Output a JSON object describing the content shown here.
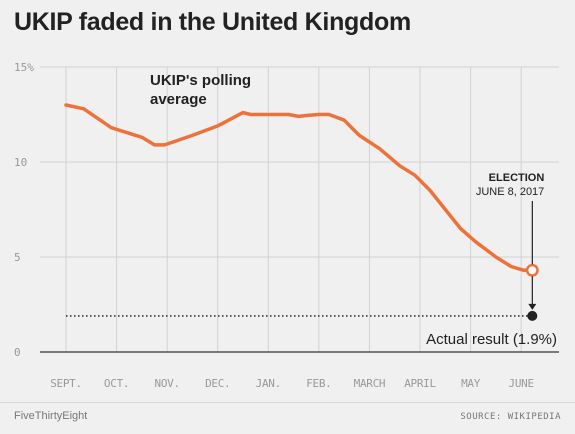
{
  "title": "UKIP faded in the United Kingdom",
  "footer": {
    "brand": "FiveThirtyEight",
    "source": "SOURCE: WIKIPEDIA"
  },
  "colors": {
    "line": "#ed713a",
    "marker": "#222222",
    "grid": "#d2d2d2",
    "text": "#222222",
    "axis_text": "#999999"
  },
  "chart_data": {
    "type": "line",
    "title": "UKIP faded in the United Kingdom",
    "xlabel": "",
    "ylabel": "",
    "ylim": [
      0,
      15
    ],
    "xlim": [
      0,
      9.55
    ],
    "ytick_labels": [
      "15%",
      "10",
      "5",
      "0"
    ],
    "yticks": [
      15,
      10,
      5,
      0
    ],
    "xtick_labels": [
      "SEPT.",
      "OCT.",
      "NOV.",
      "DEC.",
      "JAN.",
      "FEB.",
      "MARCH",
      "APRIL",
      "MAY",
      "JUNE"
    ],
    "xticks": [
      0,
      1,
      2,
      3,
      4,
      5,
      6,
      7,
      8,
      9
    ],
    "series": [
      {
        "name": "UKIP's polling average",
        "x": [
          0,
          0.35,
          0.9,
          1.5,
          1.75,
          1.95,
          2.5,
          3.0,
          3.5,
          3.65,
          4.0,
          4.4,
          4.6,
          4.75,
          5.0,
          5.2,
          5.5,
          5.8,
          6.2,
          6.6,
          6.9,
          7.2,
          7.5,
          7.8,
          8.1,
          8.5,
          8.8,
          9.05,
          9.22
        ],
        "y": [
          13.0,
          12.8,
          11.8,
          11.3,
          10.9,
          10.9,
          11.4,
          11.9,
          12.6,
          12.5,
          12.5,
          12.5,
          12.4,
          12.45,
          12.5,
          12.5,
          12.2,
          11.4,
          10.7,
          9.8,
          9.3,
          8.5,
          7.5,
          6.5,
          5.8,
          5.0,
          4.5,
          4.3,
          4.3
        ]
      }
    ],
    "result": {
      "label": "Actual result (1.9%)",
      "value": 1.9
    },
    "annotations": {
      "series_label_line1": "UKIP's polling",
      "series_label_line2": "average",
      "election_title": "ELECTION",
      "election_date": "JUNE 8, 2017",
      "election_x": 9.22
    }
  }
}
